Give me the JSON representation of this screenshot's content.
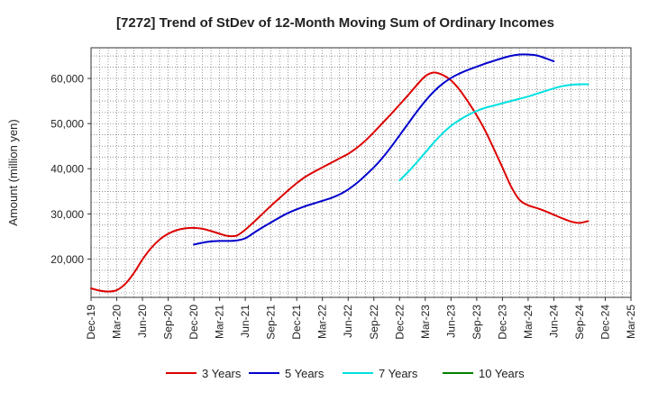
{
  "chart_data": {
    "type": "line",
    "title": "[7272]  Trend of StDev of 12-Month Moving Sum of Ordinary Incomes",
    "xlabel": "",
    "ylabel": "Amount (million yen)",
    "ylim": [
      11500,
      66800
    ],
    "yticks": [
      20000,
      30000,
      40000,
      50000,
      60000
    ],
    "ytick_labels": [
      "20,000",
      "30,000",
      "40,000",
      "50,000",
      "60,000"
    ],
    "xlim": [
      "Dec-19",
      "Mar-25"
    ],
    "xtick_labels": [
      "Dec-19",
      "Mar-20",
      "Jun-20",
      "Sep-20",
      "Dec-20",
      "Mar-21",
      "Jun-21",
      "Sep-21",
      "Dec-21",
      "Mar-22",
      "Jun-22",
      "Sep-22",
      "Dec-22",
      "Mar-23",
      "Jun-23",
      "Sep-23",
      "Dec-23",
      "Mar-24",
      "Jun-24",
      "Sep-24",
      "Dec-24",
      "Mar-25"
    ],
    "grid": true,
    "legend_position": "bottom",
    "series": [
      {
        "name": "3 Years",
        "color": "#dd0000",
        "start_month_index": 0,
        "values": [
          13500,
          13000,
          12800,
          13100,
          14500,
          16900,
          19900,
          22400,
          24300,
          25600,
          26400,
          26800,
          26900,
          26700,
          26200,
          25600,
          25100,
          25200,
          26500,
          28200,
          30000,
          31800,
          33500,
          35200,
          36800,
          38200,
          39300,
          40300,
          41300,
          42300,
          43300,
          44600,
          46200,
          48100,
          50100,
          52100,
          54200,
          56300,
          58500,
          60500,
          61300,
          60800,
          59600,
          57500,
          54800,
          51800,
          48400,
          44400,
          40300,
          36100,
          33100,
          31900,
          31300,
          30600,
          29800,
          29000,
          28300,
          28000,
          28400
        ]
      },
      {
        "name": "5 Years",
        "color": "#0000cc",
        "start_month_index": 12,
        "values": [
          23200,
          23600,
          23900,
          24000,
          24000,
          24100,
          24600,
          25800,
          27000,
          28100,
          29200,
          30200,
          31000,
          31700,
          32300,
          32900,
          33500,
          34300,
          35400,
          36800,
          38500,
          40300,
          42400,
          44800,
          47400,
          50000,
          52600,
          55000,
          57100,
          58800,
          60100,
          61100,
          61900,
          62600,
          63300,
          63900,
          64500,
          65000,
          65300,
          65300,
          65100,
          64500,
          63800
        ]
      },
      {
        "name": "7 Years",
        "color": "#00e0e0",
        "start_month_index": 36,
        "values": [
          37400,
          39300,
          41400,
          43600,
          45800,
          47800,
          49500,
          50800,
          51900,
          52800,
          53500,
          54000,
          54500,
          55000,
          55500,
          56000,
          56600,
          57200,
          57800,
          58300,
          58600,
          58700,
          58700
        ]
      },
      {
        "name": "10 Years",
        "color": "#008000",
        "start_month_index": 0,
        "values": []
      }
    ]
  }
}
